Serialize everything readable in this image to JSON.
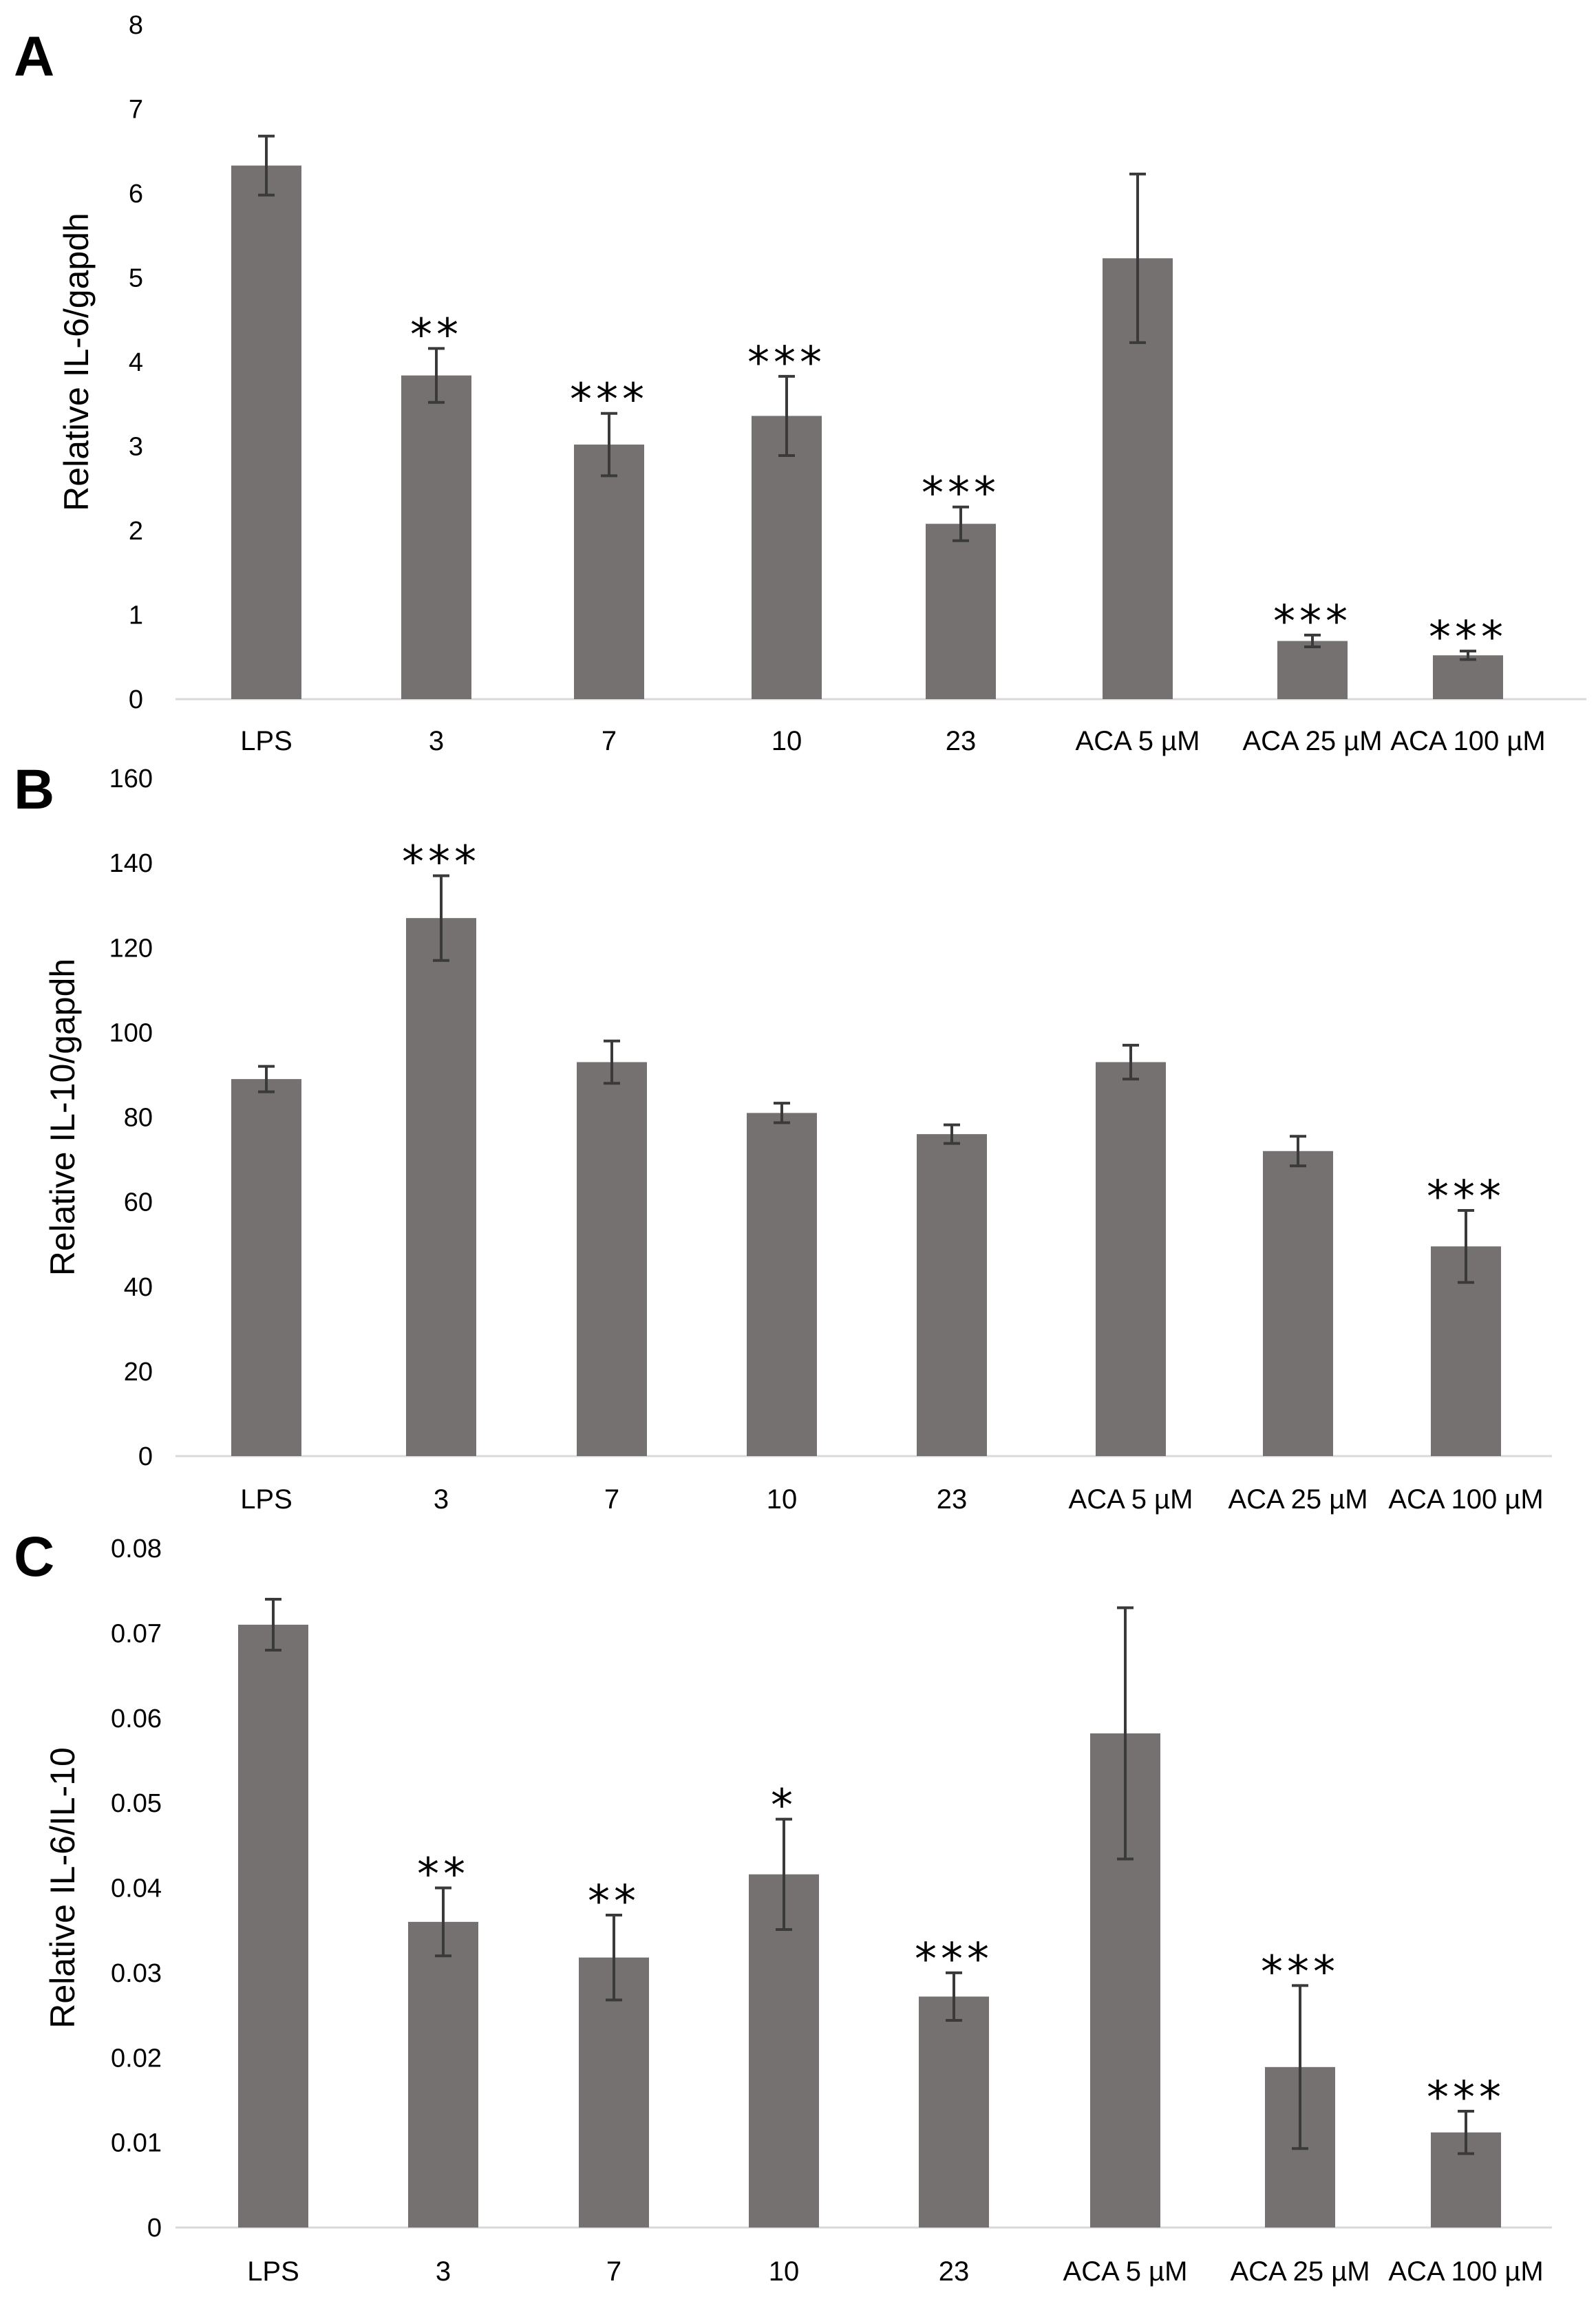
{
  "chart_data": [
    {
      "type": "bar",
      "panel": "A",
      "ylabel": "Relative IL-6/gapdh",
      "xlabel": "",
      "title": "",
      "ylim": [
        0,
        8
      ],
      "yticks": [
        "0",
        "1",
        "2",
        "3",
        "4",
        "5",
        "6",
        "7",
        "8"
      ],
      "categories": [
        "LPS",
        "3",
        "7",
        "10",
        "23",
        "ACA 5 µM",
        "ACA 25 µM",
        "ACA 100 µM"
      ],
      "values": [
        6.33,
        3.84,
        3.02,
        3.36,
        2.08,
        5.23,
        0.69,
        0.52
      ],
      "errors": [
        0.35,
        0.32,
        0.37,
        0.47,
        0.2,
        1.0,
        0.07,
        0.05
      ],
      "significance": [
        "",
        "**",
        "***",
        "***",
        "***",
        "",
        "***",
        "***"
      ],
      "grid": false,
      "color": "#767171"
    },
    {
      "type": "bar",
      "panel": "B",
      "ylabel": "Relative IL-10/gapdh",
      "xlabel": "",
      "title": "",
      "ylim": [
        0,
        160
      ],
      "yticks": [
        "0",
        "20",
        "40",
        "60",
        "80",
        "100",
        "120",
        "140",
        "160"
      ],
      "categories": [
        "LPS",
        "3",
        "7",
        "10",
        "23",
        "ACA 5 µM",
        "ACA 25 µM",
        "ACA 100 µM"
      ],
      "values": [
        89,
        127,
        93,
        81,
        76,
        93,
        72,
        49.5
      ],
      "errors": [
        3,
        10,
        5,
        2.3,
        2.2,
        4,
        3.5,
        8.5
      ],
      "significance": [
        "",
        "***",
        "",
        "",
        "",
        "",
        "",
        "***"
      ],
      "grid": false,
      "color": "#767171"
    },
    {
      "type": "bar",
      "panel": "C",
      "ylabel": "Relative IL-6/IL-10",
      "xlabel": "",
      "title": "",
      "ylim": [
        0,
        0.08
      ],
      "yticks": [
        "0",
        "0.01",
        "0.02",
        "0.03",
        "0.04",
        "0.05",
        "0.06",
        "0.07",
        "0.08"
      ],
      "categories": [
        "LPS",
        "3",
        "7",
        "10",
        "23",
        "ACA 5 µM",
        "ACA 25 µM",
        "ACA 100 µM"
      ],
      "values": [
        0.071,
        0.036,
        0.0318,
        0.0416,
        0.0272,
        0.0582,
        0.0189,
        0.0112
      ],
      "errors": [
        0.003,
        0.004,
        0.005,
        0.0065,
        0.0028,
        0.0148,
        0.0096,
        0.0025
      ],
      "significance": [
        "",
        "**",
        "**",
        "*",
        "***",
        "",
        "***",
        "***"
      ],
      "grid": false,
      "color": "#767171"
    }
  ]
}
